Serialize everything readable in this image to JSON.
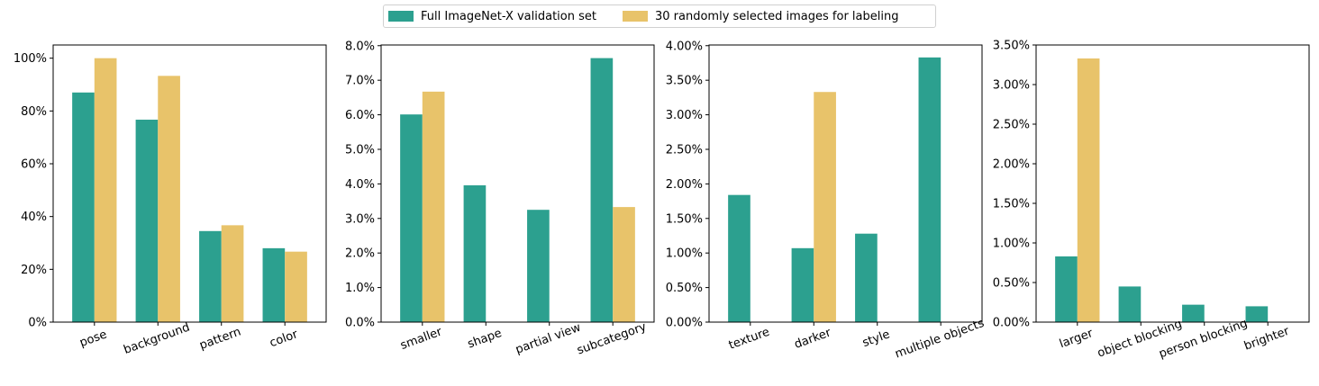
{
  "legend": {
    "series_a": "Full ImageNet-X validation set",
    "series_b": "30 randomly selected images for labeling",
    "color_a": "#2ca08f",
    "color_b": "#e8c36a"
  },
  "chart_data": [
    {
      "type": "bar",
      "categories": [
        "pose",
        "background",
        "pattern",
        "color"
      ],
      "series": [
        {
          "name": "Full ImageNet-X validation set",
          "values": [
            0.87,
            0.767,
            0.345,
            0.28
          ]
        },
        {
          "name": "30 randomly selected images for labeling",
          "values": [
            1.0,
            0.933,
            0.367,
            0.267
          ]
        }
      ],
      "ylim": [
        0,
        1.05
      ],
      "yticks": [
        0,
        0.2,
        0.4,
        0.6,
        0.8,
        1.0
      ],
      "ytick_labels": [
        "0%",
        "20%",
        "40%",
        "60%",
        "80%",
        "100%"
      ]
    },
    {
      "type": "bar",
      "categories": [
        "smaller",
        "shape",
        "partial view",
        "subcategory"
      ],
      "series": [
        {
          "name": "Full ImageNet-X validation set",
          "values": [
            0.0601,
            0.0396,
            0.0325,
            0.0764
          ]
        },
        {
          "name": "30 randomly selected images for labeling",
          "values": [
            0.0667,
            0,
            0,
            0.0333
          ]
        }
      ],
      "ylim": [
        0,
        0.0802
      ],
      "yticks": [
        0,
        0.01,
        0.02,
        0.03,
        0.04,
        0.05,
        0.06,
        0.07,
        0.08
      ],
      "ytick_labels": [
        "0.0%",
        "1.0%",
        "2.0%",
        "3.0%",
        "4.0%",
        "5.0%",
        "6.0%",
        "7.0%",
        "8.0%"
      ]
    },
    {
      "type": "bar",
      "categories": [
        "texture",
        "darker",
        "style",
        "multiple objects"
      ],
      "series": [
        {
          "name": "Full ImageNet-X validation set",
          "values": [
            0.0184,
            0.0107,
            0.0128,
            0.0383
          ]
        },
        {
          "name": "30 randomly selected images for labeling",
          "values": [
            0,
            0.0333,
            0,
            0
          ]
        }
      ],
      "ylim": [
        0,
        0.0401
      ],
      "yticks": [
        0,
        0.005,
        0.01,
        0.015,
        0.02,
        0.025,
        0.03,
        0.035,
        0.04
      ],
      "ytick_labels": [
        "0.00%",
        "0.50%",
        "1.00%",
        "1.50%",
        "2.00%",
        "2.50%",
        "3.00%",
        "3.50%",
        "4.00%"
      ]
    },
    {
      "type": "bar",
      "categories": [
        "larger",
        "object blocking",
        "person blocking",
        "brighter"
      ],
      "series": [
        {
          "name": "Full ImageNet-X validation set",
          "values": [
            0.0083,
            0.0045,
            0.0022,
            0.002
          ]
        },
        {
          "name": "30 randomly selected images for labeling",
          "values": [
            0.0333,
            0,
            0,
            0
          ]
        }
      ],
      "ylim": [
        0,
        0.035
      ],
      "yticks": [
        0,
        0.005,
        0.01,
        0.015,
        0.02,
        0.025,
        0.03,
        0.035
      ],
      "ytick_labels": [
        "0.00%",
        "0.50%",
        "1.00%",
        "1.50%",
        "2.00%",
        "2.50%",
        "3.00%",
        "3.50%"
      ]
    }
  ]
}
